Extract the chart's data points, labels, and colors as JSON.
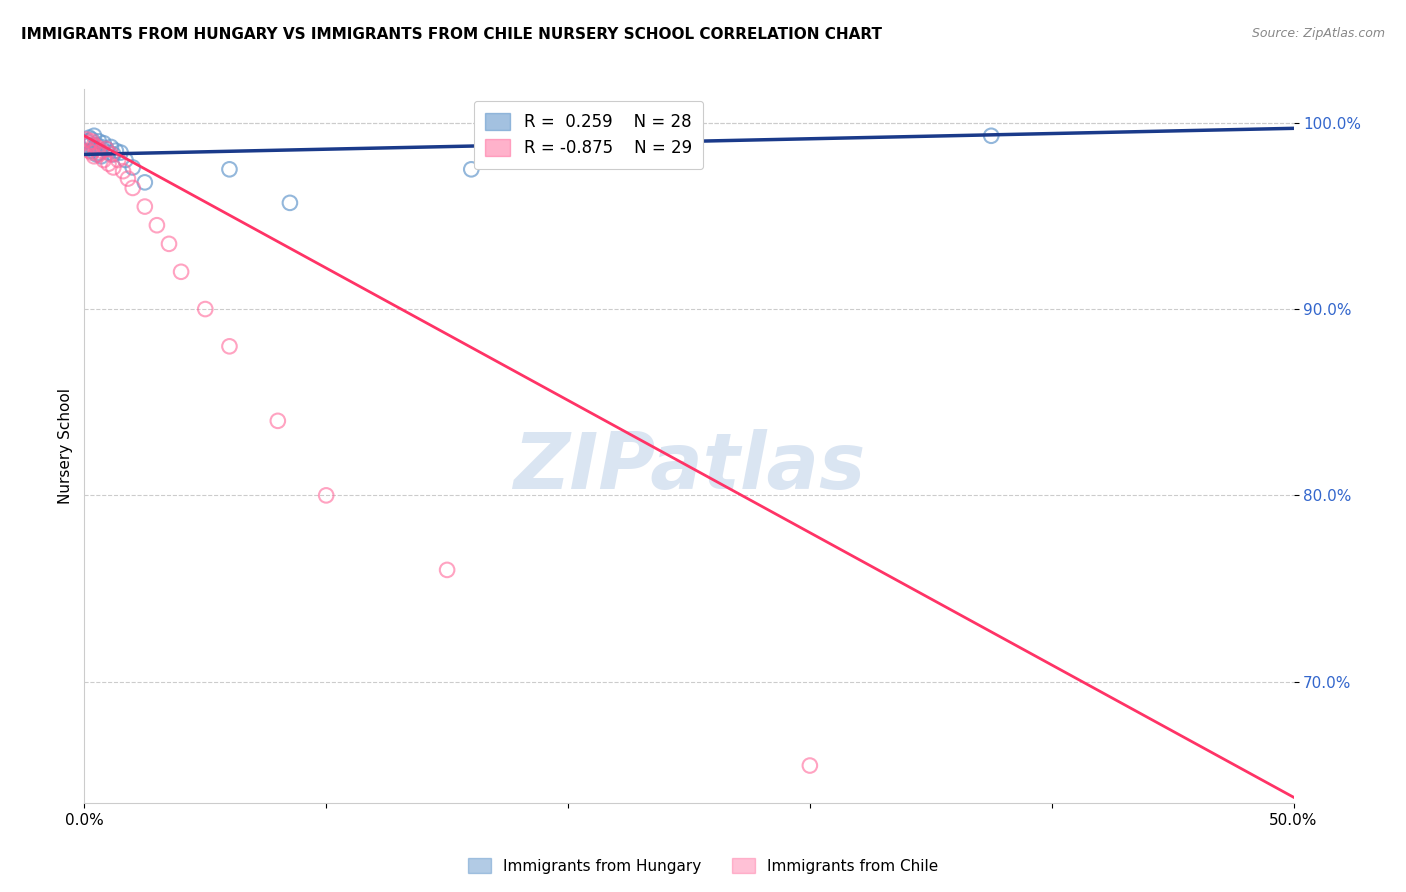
{
  "title": "IMMIGRANTS FROM HUNGARY VS IMMIGRANTS FROM CHILE NURSERY SCHOOL CORRELATION CHART",
  "source": "Source: ZipAtlas.com",
  "ylabel": "Nursery School",
  "xlim": [
    0.0,
    0.5
  ],
  "ylim": [
    0.635,
    1.018
  ],
  "yticks": [
    0.7,
    0.8,
    0.9,
    1.0
  ],
  "ytick_labels": [
    "70.0%",
    "80.0%",
    "90.0%",
    "100.0%"
  ],
  "hungary_color": "#6699CC",
  "chile_color": "#FF6699",
  "hungary_line_color": "#1A3A8A",
  "chile_line_color": "#FF3366",
  "watermark": "ZIPatlas",
  "legend_r_hungary": "R =  0.259",
  "legend_n_hungary": "N = 28",
  "legend_r_chile": "R = -0.875",
  "legend_n_chile": "N = 29",
  "hungary_x": [
    0.001,
    0.002,
    0.002,
    0.003,
    0.003,
    0.004,
    0.004,
    0.005,
    0.005,
    0.006,
    0.006,
    0.007,
    0.007,
    0.008,
    0.009,
    0.01,
    0.011,
    0.012,
    0.013,
    0.015,
    0.017,
    0.02,
    0.025,
    0.06,
    0.085,
    0.16,
    0.2,
    0.375
  ],
  "hungary_y": [
    0.99,
    0.992,
    0.988,
    0.991,
    0.985,
    0.993,
    0.986,
    0.988,
    0.983,
    0.99,
    0.984,
    0.987,
    0.982,
    0.989,
    0.986,
    0.984,
    0.987,
    0.983,
    0.985,
    0.984,
    0.98,
    0.976,
    0.968,
    0.975,
    0.957,
    0.975,
    0.98,
    0.993
  ],
  "chile_x": [
    0.001,
    0.002,
    0.002,
    0.003,
    0.003,
    0.004,
    0.004,
    0.005,
    0.006,
    0.007,
    0.008,
    0.009,
    0.01,
    0.011,
    0.012,
    0.014,
    0.016,
    0.018,
    0.02,
    0.025,
    0.03,
    0.035,
    0.04,
    0.05,
    0.06,
    0.08,
    0.1,
    0.15,
    0.3
  ],
  "chile_y": [
    0.991,
    0.989,
    0.985,
    0.99,
    0.984,
    0.988,
    0.982,
    0.987,
    0.983,
    0.985,
    0.98,
    0.986,
    0.978,
    0.983,
    0.976,
    0.98,
    0.974,
    0.97,
    0.965,
    0.955,
    0.945,
    0.935,
    0.92,
    0.9,
    0.88,
    0.84,
    0.8,
    0.76,
    0.655
  ],
  "hungary_trendline_x": [
    0.0,
    0.5
  ],
  "hungary_trendline_y": [
    0.983,
    0.997
  ],
  "chile_trendline_x": [
    0.0,
    0.5
  ],
  "chile_trendline_y": [
    0.993,
    0.638
  ]
}
